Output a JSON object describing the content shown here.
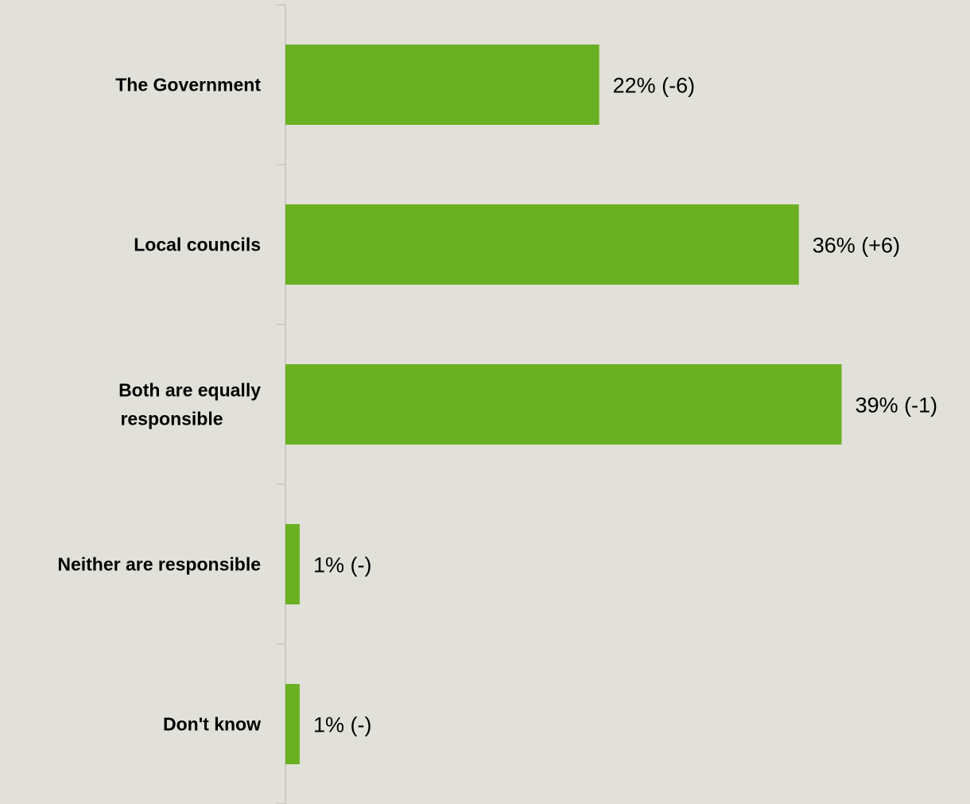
{
  "chart_data": {
    "type": "bar",
    "orientation": "horizontal",
    "categories": [
      "The Government",
      "Local councils",
      "Both are equally responsible",
      "Neither are responsible",
      "Don't know"
    ],
    "values": [
      22,
      36,
      39,
      1,
      1
    ],
    "data_labels": [
      "22% (-6)",
      "36% (+6)",
      "39% (-1)",
      "1% (-)",
      "1% (-)"
    ],
    "xlim": [
      0,
      48
    ],
    "grid": false,
    "legend": "none",
    "bar_color": "#6ab023",
    "axis_color": "#c4c4bc"
  }
}
